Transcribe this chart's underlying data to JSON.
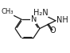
{
  "bg_color": "#ffffff",
  "bond_color": "#1a1a1a",
  "text_color": "#1a1a1a",
  "figsize": [
    0.88,
    0.66
  ],
  "dpi": 100,
  "font_size": 6.5,
  "N_label": "N",
  "NH2_label": "H₂N",
  "NH_label": "NH",
  "O_label": "O"
}
